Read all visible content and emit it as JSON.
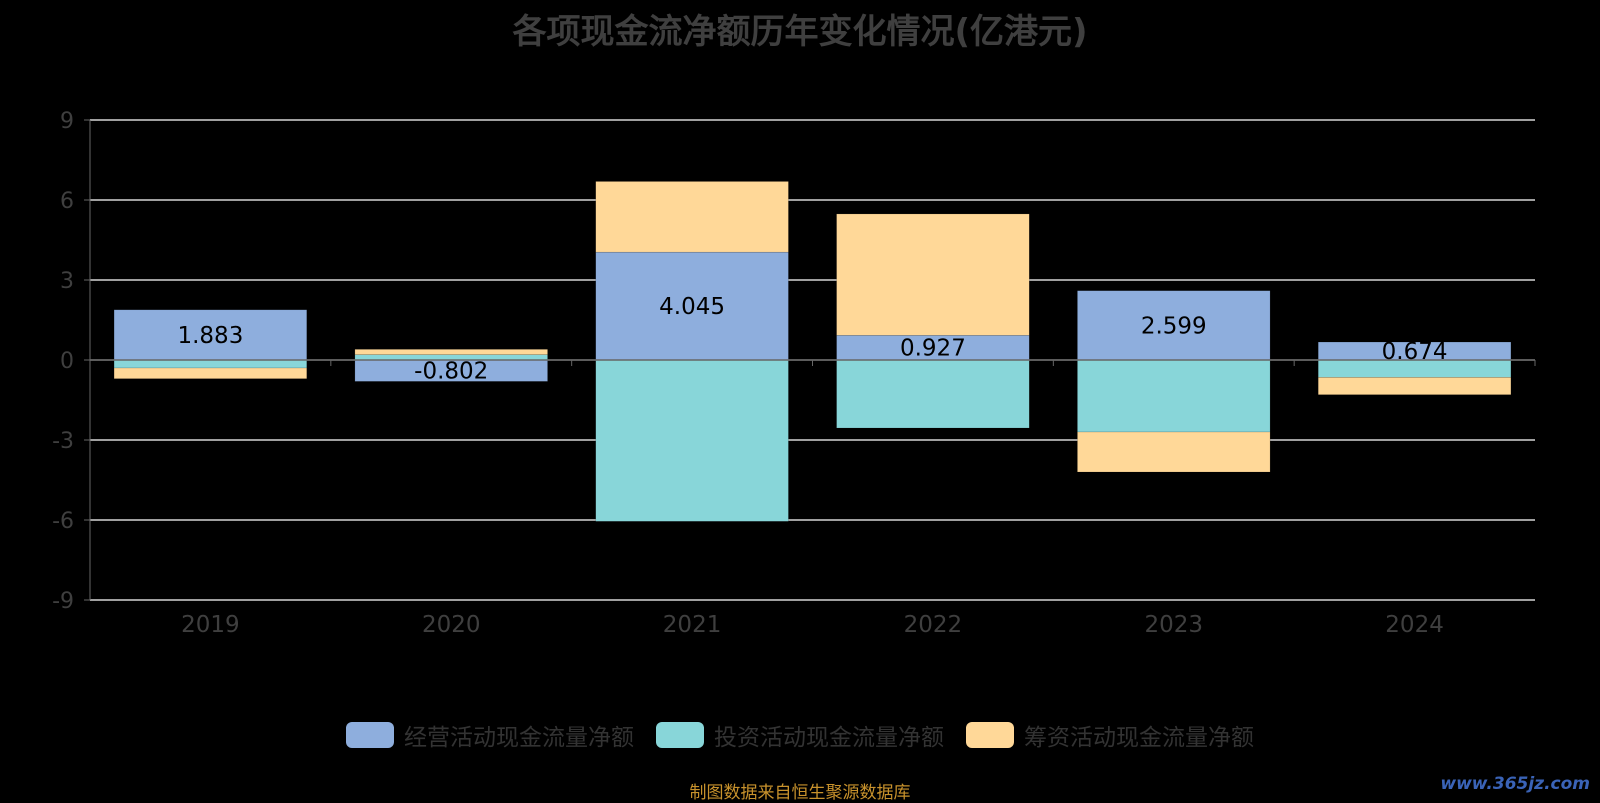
{
  "title": "各项现金流净额历年变化情况(亿港元)",
  "source_note": "制图数据来自恒生聚源数据库",
  "watermark": "www.365jz.com",
  "colors": {
    "background": "#000000",
    "axis": "#666666",
    "grid": "#ffffff",
    "tick_text": "#3f3f3f",
    "value_label": "#000000"
  },
  "chart_data": {
    "type": "bar",
    "stacked": true,
    "categories": [
      "2019",
      "2020",
      "2021",
      "2022",
      "2023",
      "2024"
    ],
    "ylim": [
      -9,
      9
    ],
    "yticks": [
      9,
      6,
      3,
      0,
      -3,
      -6,
      -9
    ],
    "grid": true,
    "legend_position": "bottom",
    "xlabel": "",
    "ylabel": "",
    "series": [
      {
        "name": "经营活动现金流量净额",
        "color": "#8eaedd",
        "values": [
          1.883,
          -0.802,
          4.045,
          0.927,
          2.599,
          0.674
        ],
        "data_labels": [
          "1.883",
          "-0.802",
          "4.045",
          "0.927",
          "2.599",
          "0.674"
        ]
      },
      {
        "name": "投资活动现金流量净额",
        "color": "#88d6d9",
        "values": [
          -0.3,
          0.2,
          -6.05,
          -2.55,
          -2.7,
          -0.65
        ]
      },
      {
        "name": "筹资活动现金流量净额",
        "color": "#ffd898",
        "values": [
          -0.4,
          0.2,
          2.65,
          4.55,
          -1.5,
          -0.65
        ]
      }
    ]
  }
}
